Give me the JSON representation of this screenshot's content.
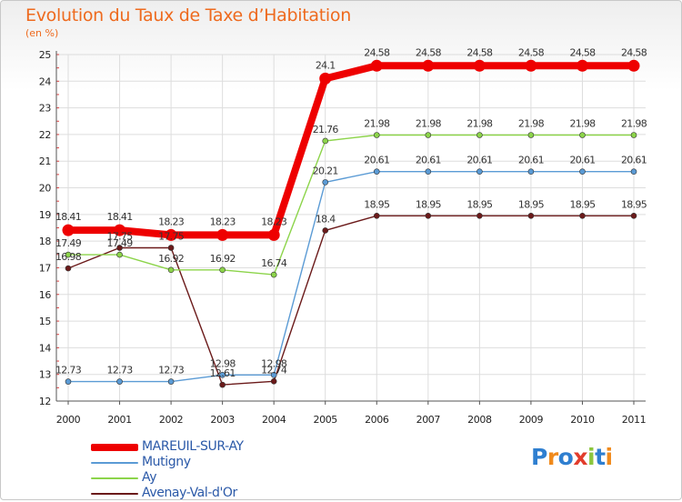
{
  "header": {
    "title": "Evolution du Taux de Taxe d’Habitation",
    "unit": "(en %)"
  },
  "chart_data": {
    "type": "line",
    "title": "Evolution du Taux de Taxe d’Habitation",
    "ylabel": "(en %)",
    "xlabel": "",
    "x": [
      2000,
      2001,
      2002,
      2003,
      2004,
      2005,
      2006,
      2007,
      2008,
      2009,
      2010,
      2011
    ],
    "ylim": [
      12,
      25
    ],
    "yticks": [
      12,
      13,
      14,
      15,
      16,
      17,
      18,
      19,
      20,
      21,
      22,
      23,
      24,
      25
    ],
    "grid": true,
    "legend_position": "bottom-left",
    "series": [
      {
        "name": "MAREUIL-SUR-AY",
        "color": "#ee0000",
        "values": [
          18.41,
          18.41,
          18.23,
          18.23,
          18.23,
          24.1,
          24.58,
          24.58,
          24.58,
          24.58,
          24.58,
          24.58
        ],
        "labels": [
          "18.41",
          "18.41",
          "18.23",
          "18.23",
          "18.23",
          "24.1",
          "24.58",
          "24.58",
          "24.58",
          "24.58",
          "24.58",
          "24.58"
        ]
      },
      {
        "name": "Mutigny",
        "color": "#5b9bd5",
        "values": [
          12.73,
          12.73,
          12.73,
          12.98,
          12.98,
          20.21,
          20.61,
          20.61,
          20.61,
          20.61,
          20.61,
          20.61
        ],
        "labels": [
          "12.73",
          "12.73",
          "12.73",
          "12.98",
          "12.98",
          "20.21",
          "20.61",
          "20.61",
          "20.61",
          "20.61",
          "20.61",
          "20.61"
        ]
      },
      {
        "name": "Ay",
        "color": "#8cd44a",
        "values": [
          17.49,
          17.49,
          16.92,
          16.92,
          16.74,
          21.76,
          21.98,
          21.98,
          21.98,
          21.98,
          21.98,
          21.98
        ],
        "labels": [
          "17.49",
          "17.49",
          "16.92",
          "16.92",
          "16.74",
          "21.76",
          "21.98",
          "21.98",
          "21.98",
          "21.98",
          "21.98",
          "21.98"
        ]
      },
      {
        "name": "Avenay-Val-d'Or",
        "color": "#6b1a1a",
        "values": [
          16.98,
          17.75,
          17.75,
          12.61,
          12.74,
          18.4,
          18.95,
          18.95,
          18.95,
          18.95,
          18.95,
          18.95
        ],
        "labels": [
          "16.98",
          "17.75",
          "17.75",
          "12.61",
          "12.74",
          "18.4",
          "18.95",
          "18.95",
          "18.95",
          "18.95",
          "18.95",
          "18.95"
        ]
      }
    ]
  },
  "logo": {
    "text": "Proxiti",
    "letter_colors": [
      "#2f7fd0",
      "#f08a1c",
      "#2f7fd0",
      "#e23c2c",
      "#8cc63e",
      "#2f7fd0",
      "#f08a1c"
    ]
  }
}
